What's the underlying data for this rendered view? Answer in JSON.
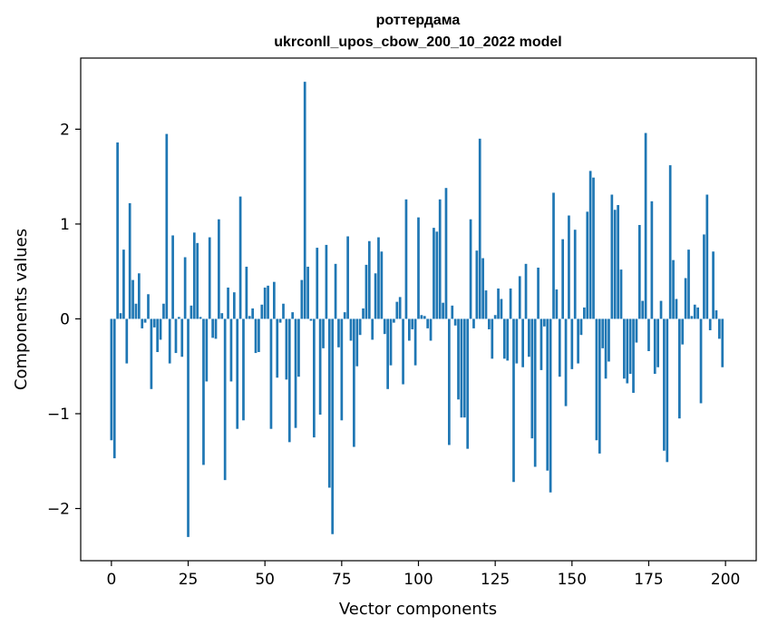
{
  "chart_data": {
    "type": "bar",
    "title_line1": "роттердама",
    "title_line2": "ukrconll_upos_cbow_200_10_2022 model",
    "xlabel": "Vector components",
    "ylabel": "Components values",
    "xlim": [
      -10,
      210
    ],
    "ylim": [
      -2.55,
      2.75
    ],
    "xticks": [
      0,
      25,
      50,
      75,
      100,
      125,
      150,
      175,
      200
    ],
    "yticks": [
      -2,
      -1,
      0,
      1,
      2
    ],
    "ytick_labels": [
      "−2",
      "−1",
      "0",
      "1",
      "2"
    ],
    "grid": false,
    "legend": "none",
    "bar_color": "#1f77b4",
    "x": [
      0,
      1,
      2,
      3,
      4,
      5,
      6,
      7,
      8,
      9,
      10,
      11,
      12,
      13,
      14,
      15,
      16,
      17,
      18,
      19,
      20,
      21,
      22,
      23,
      24,
      25,
      26,
      27,
      28,
      29,
      30,
      31,
      32,
      33,
      34,
      35,
      36,
      37,
      38,
      39,
      40,
      41,
      42,
      43,
      44,
      45,
      46,
      47,
      48,
      49,
      50,
      51,
      52,
      53,
      54,
      55,
      56,
      57,
      58,
      59,
      60,
      61,
      62,
      63,
      64,
      65,
      66,
      67,
      68,
      69,
      70,
      71,
      72,
      73,
      74,
      75,
      76,
      77,
      78,
      79,
      80,
      81,
      82,
      83,
      84,
      85,
      86,
      87,
      88,
      89,
      90,
      91,
      92,
      93,
      94,
      95,
      96,
      97,
      98,
      99,
      100,
      101,
      102,
      103,
      104,
      105,
      106,
      107,
      108,
      109,
      110,
      111,
      112,
      113,
      114,
      115,
      116,
      117,
      118,
      119,
      120,
      121,
      122,
      123,
      124,
      125,
      126,
      127,
      128,
      129,
      130,
      131,
      132,
      133,
      134,
      135,
      136,
      137,
      138,
      139,
      140,
      141,
      142,
      143,
      144,
      145,
      146,
      147,
      148,
      149,
      150,
      151,
      152,
      153,
      154,
      155,
      156,
      157,
      158,
      159,
      160,
      161,
      162,
      163,
      164,
      165,
      166,
      167,
      168,
      169,
      170,
      171,
      172,
      173,
      174,
      175,
      176,
      177,
      178,
      179,
      180,
      181,
      182,
      183,
      184,
      185,
      186,
      187,
      188,
      189,
      190,
      191,
      192,
      193,
      194,
      195,
      196,
      197,
      198,
      199
    ],
    "values": [
      -1.28,
      -1.47,
      1.86,
      0.06,
      0.73,
      -0.47,
      1.22,
      0.41,
      0.16,
      0.48,
      -0.1,
      -0.04,
      0.26,
      -0.74,
      -0.09,
      -0.35,
      -0.22,
      0.16,
      1.95,
      -0.47,
      0.88,
      -0.36,
      0.02,
      -0.4,
      0.65,
      -2.3,
      0.14,
      0.91,
      0.8,
      0.02,
      -1.54,
      -0.66,
      0.86,
      -0.2,
      -0.21,
      1.05,
      0.06,
      -1.7,
      0.33,
      -0.66,
      0.28,
      -1.16,
      1.29,
      -1.07,
      0.55,
      0.03,
      0.11,
      -0.36,
      -0.35,
      0.15,
      0.33,
      0.35,
      -1.16,
      0.39,
      -0.62,
      -0.04,
      0.16,
      -0.64,
      -1.3,
      0.07,
      -1.15,
      -0.61,
      0.41,
      2.5,
      0.55,
      -0.02,
      -1.25,
      0.75,
      -1.01,
      -0.31,
      0.78,
      -1.78,
      -2.27,
      0.58,
      -0.3,
      -1.07,
      0.07,
      0.87,
      -0.23,
      -1.35,
      -0.5,
      -0.17,
      0.11,
      0.57,
      0.82,
      -0.22,
      0.48,
      0.86,
      0.71,
      -0.16,
      -0.74,
      -0.49,
      -0.04,
      0.18,
      0.23,
      -0.69,
      1.26,
      -0.23,
      -0.11,
      -0.49,
      1.07,
      0.04,
      0.03,
      -0.1,
      -0.23,
      0.96,
      0.92,
      1.26,
      0.17,
      1.38,
      -1.33,
      0.14,
      -0.07,
      -0.85,
      -1.04,
      -1.04,
      -1.37,
      1.05,
      -0.1,
      0.72,
      1.9,
      0.64,
      0.3,
      -0.11,
      -0.42,
      0.04,
      0.32,
      0.21,
      -0.42,
      -0.44,
      0.32,
      -1.72,
      -0.47,
      0.45,
      -0.51,
      0.58,
      -0.4,
      -1.26,
      -1.56,
      0.54,
      -0.54,
      -0.08,
      -1.6,
      -1.83,
      1.33,
      0.31,
      -0.61,
      0.84,
      -0.92,
      1.09,
      -0.53,
      0.94,
      -0.47,
      -0.17,
      0.12,
      1.13,
      1.56,
      1.49,
      -1.28,
      -1.42,
      -0.31,
      -0.63,
      -0.45,
      1.31,
      1.15,
      1.2,
      0.52,
      -0.63,
      -0.68,
      -0.58,
      -0.78,
      -0.25,
      0.99,
      0.19,
      1.96,
      -0.34,
      1.24,
      -0.58,
      -0.51,
      0.19,
      -1.39,
      -1.51,
      1.62,
      0.62,
      0.21,
      -1.05,
      -0.27,
      0.43,
      0.73,
      0.03,
      0.15,
      0.12,
      -0.89,
      0.89,
      1.31,
      -0.12,
      0.71,
      0.09,
      -0.21,
      -0.51
    ]
  }
}
